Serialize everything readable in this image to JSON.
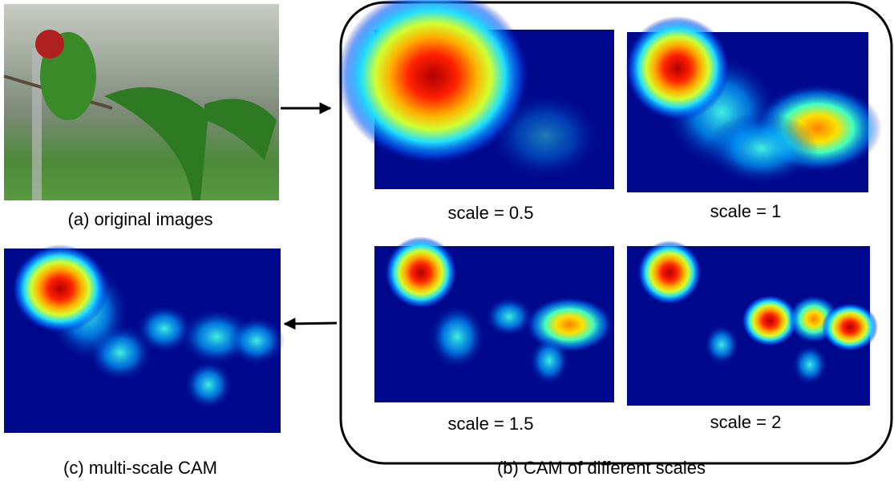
{
  "original": {
    "caption": "(a) original images"
  },
  "scales": {
    "caption": "(b) CAM of different scales",
    "items": [
      {
        "label": "scale = 0.5"
      },
      {
        "label": "scale = 1"
      },
      {
        "label": "scale = 1.5"
      },
      {
        "label": "scale = 2"
      }
    ]
  },
  "multi_scale": {
    "caption": "(c) multi-scale CAM"
  }
}
